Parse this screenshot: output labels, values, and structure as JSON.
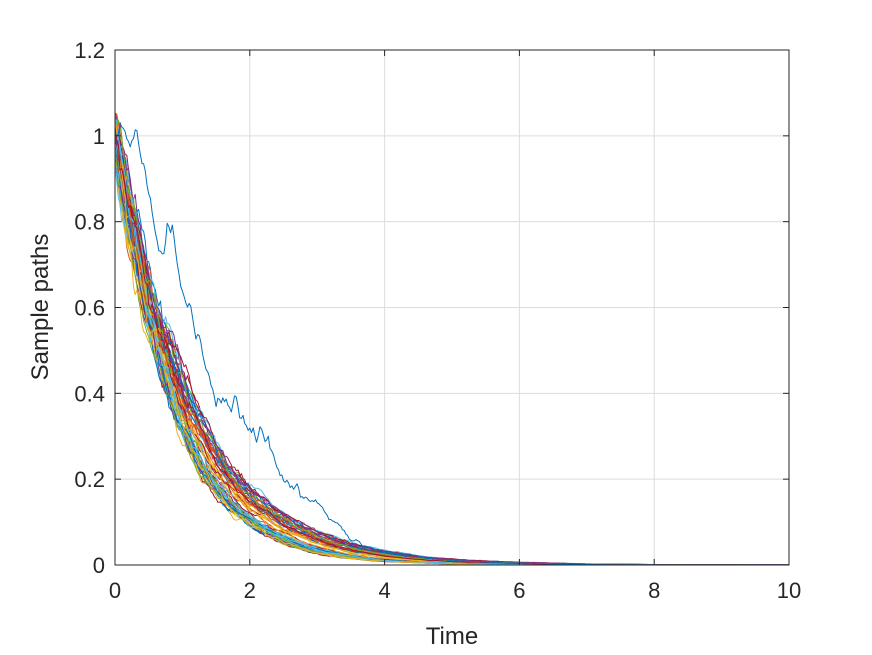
{
  "chart_data": {
    "type": "line",
    "title": "",
    "xlabel": "Time",
    "ylabel": "Sample paths",
    "xlim": [
      0,
      10
    ],
    "ylim": [
      0,
      1.2
    ],
    "xticks": [
      0,
      2,
      4,
      6,
      8,
      10
    ],
    "yticks": [
      0,
      0.2,
      0.4,
      0.6,
      0.8,
      1,
      1.2
    ],
    "xtick_labels": [
      "0",
      "2",
      "4",
      "6",
      "8",
      "10"
    ],
    "ytick_labels": [
      "0",
      "0.2",
      "0.4",
      "0.6",
      "0.8",
      "1",
      "1.2"
    ],
    "grid": true,
    "legend": "none",
    "colors": [
      "#0072bd",
      "#d95319",
      "#edb120",
      "#7e2f8e",
      "#77ac30",
      "#4dbeee",
      "#a2142f"
    ],
    "series_count": 56,
    "mean_path": {
      "x": [
        0,
        0.5,
        1,
        1.5,
        2,
        2.5,
        3,
        3.5,
        4,
        4.5,
        5,
        6,
        7,
        8,
        9,
        10
      ],
      "y": [
        1.0,
        0.61,
        0.37,
        0.22,
        0.135,
        0.082,
        0.05,
        0.03,
        0.018,
        0.011,
        0.007,
        0.0025,
        0.0009,
        0.0003,
        0.0001,
        5e-05
      ]
    },
    "highlight_path": {
      "x": [
        0,
        0.2,
        0.3,
        0.5,
        0.7,
        0.8,
        0.85,
        1.0,
        1.1,
        1.2,
        1.4,
        1.5,
        1.6,
        1.7,
        1.8,
        1.9,
        2.0,
        2.1,
        2.2,
        2.3,
        2.5,
        2.6,
        2.8,
        3.0,
        3.3,
        3.5,
        3.8,
        4.0,
        4.5,
        5.0,
        6.0,
        7.0,
        8.0,
        10.0
      ],
      "y": [
        1.0,
        0.97,
        1.0,
        0.85,
        0.72,
        0.78,
        0.76,
        0.6,
        0.56,
        0.53,
        0.48,
        0.4,
        0.41,
        0.4,
        0.41,
        0.37,
        0.31,
        0.29,
        0.3,
        0.25,
        0.2,
        0.19,
        0.17,
        0.14,
        0.09,
        0.06,
        0.04,
        0.03,
        0.02,
        0.01,
        0.004,
        0.001,
        0.0004,
        0.0001
      ]
    },
    "noise_amplitude": 0.05
  }
}
